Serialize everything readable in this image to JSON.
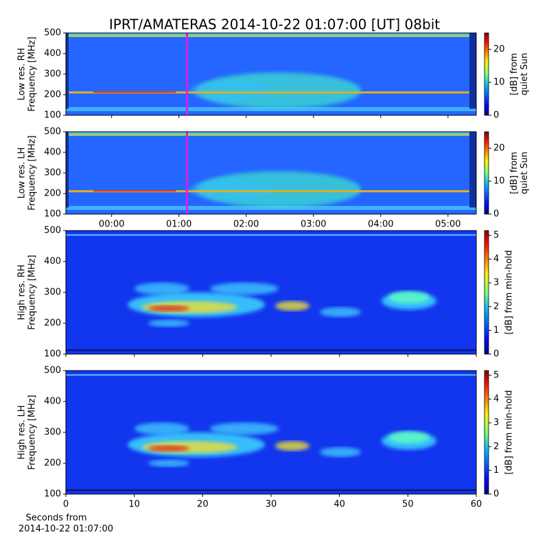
{
  "title": "IPRT/AMATERAS 2014-10-22 01:07:00 [UT]   08bit",
  "xlabel": [
    "Seconds from",
    "2014-10-22 01:07:00"
  ],
  "chart_data": [
    {
      "type": "spectrogram",
      "ylabel": [
        "Low res. RH",
        "Frequency [MHz]"
      ],
      "ylim": [
        100,
        500
      ],
      "yticks": [
        100,
        200,
        300,
        400,
        500
      ],
      "xlim": [
        -0.68,
        5.42
      ],
      "xticks": [
        {
          "value": 0,
          "label": "00:00"
        },
        {
          "value": 1,
          "label": "01:00"
        },
        {
          "value": 2,
          "label": "02:00"
        },
        {
          "value": 3,
          "label": "03:00"
        },
        {
          "value": 4,
          "label": "04:00"
        },
        {
          "value": 5,
          "label": "05:00"
        }
      ],
      "show_xticklabels": false,
      "marker_x": 1.12,
      "marker_color": "#e01ee8",
      "resolution": "low",
      "colorbar": {
        "label": [
          "[dB] from",
          "quiet Sun"
        ],
        "clim": [
          0,
          25
        ],
        "ticks": [
          0,
          10,
          20
        ]
      }
    },
    {
      "type": "spectrogram",
      "ylabel": [
        "Low res. LH",
        "Frequency [MHz]"
      ],
      "ylim": [
        100,
        500
      ],
      "yticks": [
        100,
        200,
        300,
        400,
        500
      ],
      "xlim": [
        -0.68,
        5.42
      ],
      "xticks": [
        {
          "value": 0,
          "label": "00:00"
        },
        {
          "value": 1,
          "label": "01:00"
        },
        {
          "value": 2,
          "label": "02:00"
        },
        {
          "value": 3,
          "label": "03:00"
        },
        {
          "value": 4,
          "label": "04:00"
        },
        {
          "value": 5,
          "label": "05:00"
        }
      ],
      "show_xticklabels": true,
      "marker_x": 1.12,
      "marker_color": "#e01ee8",
      "resolution": "low",
      "colorbar": {
        "label": [
          "[dB] from",
          "quiet Sun"
        ],
        "clim": [
          0,
          25
        ],
        "ticks": [
          0,
          10,
          20
        ]
      }
    },
    {
      "type": "spectrogram",
      "ylabel": [
        "High res. RH",
        "Frequency [MHz]"
      ],
      "ylim": [
        100,
        500
      ],
      "yticks": [
        100,
        200,
        300,
        400,
        500
      ],
      "xlim": [
        0,
        60
      ],
      "xticks": [
        0,
        10,
        20,
        30,
        40,
        50,
        60
      ],
      "show_xticklabels": false,
      "resolution": "high",
      "colorbar": {
        "label": [
          "[dB] from min-hold"
        ],
        "clim": [
          0,
          5.2
        ],
        "ticks": [
          0,
          1,
          2,
          3,
          4,
          5
        ]
      }
    },
    {
      "type": "spectrogram",
      "ylabel": [
        "High res. LH",
        "Frequency [MHz]"
      ],
      "ylim": [
        100,
        500
      ],
      "yticks": [
        100,
        200,
        300,
        400,
        500
      ],
      "xlim": [
        0,
        60
      ],
      "xticks": [
        0,
        10,
        20,
        30,
        40,
        50,
        60
      ],
      "show_xticklabels": true,
      "resolution": "high",
      "colorbar": {
        "label": [
          "[dB] from min-hold"
        ],
        "clim": [
          0,
          5.2
        ],
        "ticks": [
          0,
          1,
          2,
          3,
          4,
          5
        ]
      }
    }
  ]
}
